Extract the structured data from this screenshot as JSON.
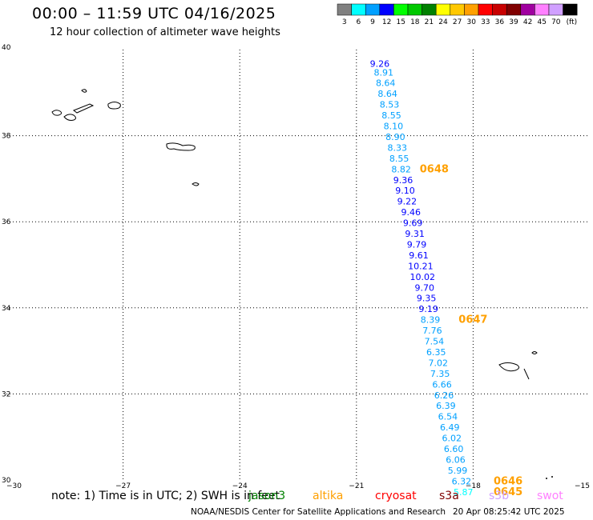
{
  "header": {
    "title": "00:00 – 11:59 UTC 04/16/2025",
    "subtitle": "12 hour collection of altimeter wave heights"
  },
  "color_scale": {
    "colors": [
      "#808080",
      "#00ffff",
      "#00a0ff",
      "#0000ff",
      "#00ff00",
      "#00c800",
      "#008000",
      "#ffff00",
      "#ffc800",
      "#ffa000",
      "#ff0000",
      "#c80000",
      "#800000",
      "#a000a0",
      "#ff80ff",
      "#d0a0ff",
      "#000000"
    ],
    "labels": [
      "3",
      "6",
      "9",
      "12",
      "15",
      "18",
      "21",
      "24",
      "27",
      "30",
      "33",
      "36",
      "39",
      "42",
      "45",
      "70",
      "(ft)"
    ]
  },
  "chart_data": {
    "type": "scatter",
    "title": "00:00 – 11:59 UTC 04/16/2025",
    "subtitle": "12 hour collection of altimeter wave heights",
    "xlabel": "",
    "ylabel": "",
    "xlim": [
      -30,
      -15
    ],
    "ylim": [
      30,
      40
    ],
    "x_ticks": [
      "−30",
      "−27",
      "−24",
      "−21",
      "−18",
      "−15"
    ],
    "y_ticks": [
      "30",
      "32",
      "34",
      "36",
      "38",
      "40"
    ],
    "grid": true,
    "points": [
      {
        "lon": -20.4,
        "lat": 39.6,
        "value": "9.26",
        "color": "#0000ff"
      },
      {
        "lon": -20.3,
        "lat": 39.4,
        "value": "8.91",
        "color": "#00a0ff"
      },
      {
        "lon": -20.25,
        "lat": 39.15,
        "value": "8.64",
        "color": "#00a0ff"
      },
      {
        "lon": -20.2,
        "lat": 38.9,
        "value": "8.64",
        "color": "#00a0ff"
      },
      {
        "lon": -20.15,
        "lat": 38.65,
        "value": "8.53",
        "color": "#00a0ff"
      },
      {
        "lon": -20.1,
        "lat": 38.4,
        "value": "8.55",
        "color": "#00a0ff"
      },
      {
        "lon": -20.05,
        "lat": 38.15,
        "value": "8.10",
        "color": "#00a0ff"
      },
      {
        "lon": -20.0,
        "lat": 37.9,
        "value": "8.90",
        "color": "#00a0ff"
      },
      {
        "lon": -19.95,
        "lat": 37.65,
        "value": "8.33",
        "color": "#00a0ff"
      },
      {
        "lon": -19.9,
        "lat": 37.4,
        "value": "8.55",
        "color": "#00a0ff"
      },
      {
        "lon": -19.85,
        "lat": 37.15,
        "value": "8.82",
        "color": "#00a0ff"
      },
      {
        "lon": -19.8,
        "lat": 36.9,
        "value": "9.36",
        "color": "#0000ff"
      },
      {
        "lon": -19.75,
        "lat": 36.65,
        "value": "9.10",
        "color": "#0000ff"
      },
      {
        "lon": -19.7,
        "lat": 36.4,
        "value": "9.22",
        "color": "#0000ff"
      },
      {
        "lon": -19.6,
        "lat": 36.15,
        "value": "9.46",
        "color": "#0000ff"
      },
      {
        "lon": -19.55,
        "lat": 35.9,
        "value": "9.69",
        "color": "#0000ff"
      },
      {
        "lon": -19.5,
        "lat": 35.65,
        "value": "9.31",
        "color": "#0000ff"
      },
      {
        "lon": -19.45,
        "lat": 35.4,
        "value": "9.79",
        "color": "#0000ff"
      },
      {
        "lon": -19.4,
        "lat": 35.15,
        "value": "9.61",
        "color": "#0000ff"
      },
      {
        "lon": -19.35,
        "lat": 34.9,
        "value": "10.21",
        "color": "#0000ff"
      },
      {
        "lon": -19.3,
        "lat": 34.65,
        "value": "10.02",
        "color": "#0000ff"
      },
      {
        "lon": -19.25,
        "lat": 34.4,
        "value": "9.70",
        "color": "#0000ff"
      },
      {
        "lon": -19.2,
        "lat": 34.15,
        "value": "9.35",
        "color": "#0000ff"
      },
      {
        "lon": -19.15,
        "lat": 33.9,
        "value": "9.19",
        "color": "#0000ff"
      },
      {
        "lon": -19.1,
        "lat": 33.65,
        "value": "8.39",
        "color": "#00a0ff"
      },
      {
        "lon": -19.05,
        "lat": 33.4,
        "value": "7.76",
        "color": "#00a0ff"
      },
      {
        "lon": -19.0,
        "lat": 33.15,
        "value": "7.54",
        "color": "#00a0ff"
      },
      {
        "lon": -18.95,
        "lat": 32.9,
        "value": "6.35",
        "color": "#00a0ff"
      },
      {
        "lon": -18.9,
        "lat": 32.65,
        "value": "7.02",
        "color": "#00a0ff"
      },
      {
        "lon": -18.85,
        "lat": 32.4,
        "value": "7.35",
        "color": "#00a0ff"
      },
      {
        "lon": -18.8,
        "lat": 32.15,
        "value": "6.66",
        "color": "#00a0ff"
      },
      {
        "lon": -18.75,
        "lat": 31.9,
        "value": "6.26",
        "color": "#00a0ff"
      },
      {
        "lon": -18.7,
        "lat": 31.65,
        "value": "6.39",
        "color": "#00a0ff"
      },
      {
        "lon": -18.65,
        "lat": 31.4,
        "value": "6.54",
        "color": "#00a0ff"
      },
      {
        "lon": -18.6,
        "lat": 31.15,
        "value": "6.49",
        "color": "#00a0ff"
      },
      {
        "lon": -18.55,
        "lat": 30.9,
        "value": "6.02",
        "color": "#00a0ff"
      },
      {
        "lon": -18.5,
        "lat": 30.65,
        "value": "6.60",
        "color": "#00a0ff"
      },
      {
        "lon": -18.45,
        "lat": 30.4,
        "value": "6.06",
        "color": "#00a0ff"
      },
      {
        "lon": -18.4,
        "lat": 30.15,
        "value": "5.99",
        "color": "#00a0ff"
      },
      {
        "lon": -18.3,
        "lat": 29.9,
        "value": "6.32",
        "color": "#00a0ff"
      },
      {
        "lon": -18.25,
        "lat": 29.65,
        "value": "5.87",
        "color": "#00ffff"
      }
    ],
    "time_labels": [
      {
        "lon": -19.0,
        "lat": 37.15,
        "value": "0648",
        "color": "#ffa000"
      },
      {
        "lon": -18.0,
        "lat": 33.65,
        "value": "0647",
        "color": "#ffa000"
      },
      {
        "lon": -17.1,
        "lat": 29.9,
        "value": "0646",
        "color": "#ffa000"
      },
      {
        "lon": -17.1,
        "lat": 29.65,
        "value": "0645",
        "color": "#ffa000"
      }
    ]
  },
  "footer": {
    "note": "note: 1) Time is in UTC; 2) SWH is in feet",
    "credit": "NOAA/NESDIS Center for Satellite Applications and Research",
    "timestamp": "20 Apr 08:25:42 UTC 2025",
    "satellites": [
      {
        "name": "jason3",
        "color": "#008000"
      },
      {
        "name": "altika",
        "color": "#ffa000"
      },
      {
        "name": "cryosat",
        "color": "#ff0000"
      },
      {
        "name": "s3a",
        "color": "#800000"
      },
      {
        "name": "s3b",
        "color": "#d0a0ff"
      },
      {
        "name": "swot",
        "color": "#ff80ff"
      }
    ]
  }
}
